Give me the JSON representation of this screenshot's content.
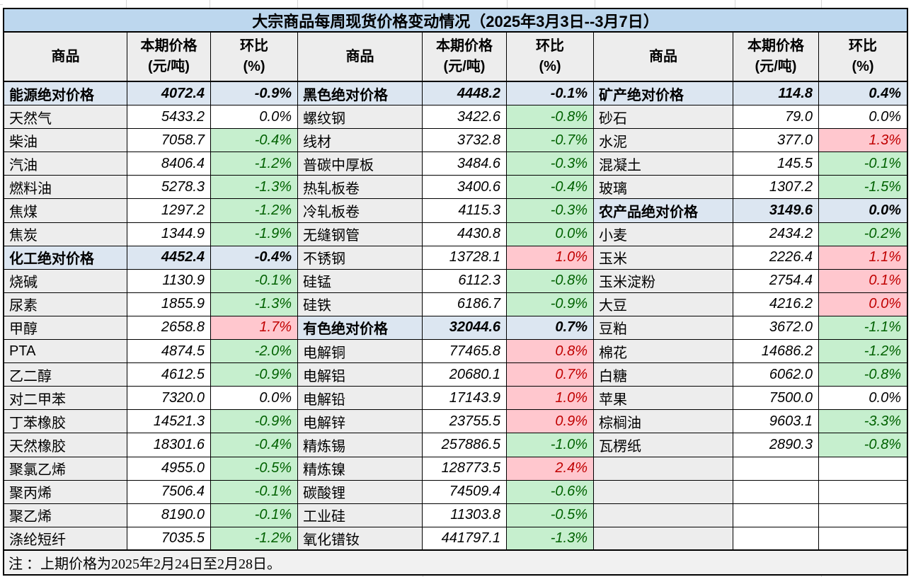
{
  "title": "大宗商品每周现货价格变动情况（2025年3月3日--3月7日）",
  "note": "注 ：上期价格为2025年2月24日至2月28日。",
  "column_headers": {
    "commodity": "商品",
    "price": "本期价格\n(元/吨)",
    "change": "环比\n(%)"
  },
  "colors": {
    "title_bg": "#BDD7EE",
    "category_bg": "#DCE6F1",
    "label_bg": "#EDEDED",
    "up_bg": "#FFC7CE",
    "up_text": "#C00000",
    "down_bg": "#C6EFCE",
    "down_text": "#006100"
  },
  "groups": [
    {
      "rows": [
        {
          "label": "能源绝对价格",
          "price": "4072.4",
          "change": "-0.9%",
          "type": "category",
          "style": "plain"
        },
        {
          "label": "天然气",
          "price": "5433.2",
          "change": "0.0%",
          "type": "item",
          "style": "plain"
        },
        {
          "label": "柴油",
          "price": "7058.7",
          "change": "-0.4%",
          "type": "item",
          "style": "green"
        },
        {
          "label": "汽油",
          "price": "8406.4",
          "change": "-1.2%",
          "type": "item",
          "style": "green"
        },
        {
          "label": "燃料油",
          "price": "5278.3",
          "change": "-1.3%",
          "type": "item",
          "style": "green"
        },
        {
          "label": "焦煤",
          "price": "1297.2",
          "change": "-1.2%",
          "type": "item",
          "style": "green"
        },
        {
          "label": "焦炭",
          "price": "1344.9",
          "change": "-1.9%",
          "type": "item",
          "style": "green"
        },
        {
          "label": "化工绝对价格",
          "price": "4452.4",
          "change": "-0.4%",
          "type": "category",
          "style": "plain"
        },
        {
          "label": "烧碱",
          "price": "1130.9",
          "change": "-0.1%",
          "type": "item",
          "style": "green"
        },
        {
          "label": "尿素",
          "price": "1855.9",
          "change": "-1.3%",
          "type": "item",
          "style": "green"
        },
        {
          "label": "甲醇",
          "price": "2658.8",
          "change": "1.7%",
          "type": "item",
          "style": "red"
        },
        {
          "label": "PTA",
          "price": "4874.5",
          "change": "-2.0%",
          "type": "item",
          "style": "green"
        },
        {
          "label": "乙二醇",
          "price": "4612.5",
          "change": "-0.9%",
          "type": "item",
          "style": "green"
        },
        {
          "label": "对二甲苯",
          "price": "7320.0",
          "change": "0.0%",
          "type": "item",
          "style": "plain"
        },
        {
          "label": "丁苯橡胶",
          "price": "14521.3",
          "change": "-0.9%",
          "type": "item",
          "style": "green"
        },
        {
          "label": "天然橡胶",
          "price": "18301.6",
          "change": "-0.4%",
          "type": "item",
          "style": "green"
        },
        {
          "label": "聚氯乙烯",
          "price": "4955.0",
          "change": "-0.5%",
          "type": "item",
          "style": "green"
        },
        {
          "label": "聚丙烯",
          "price": "7506.4",
          "change": "-0.1%",
          "type": "item",
          "style": "green"
        },
        {
          "label": "聚乙烯",
          "price": "8190.0",
          "change": "-0.1%",
          "type": "item",
          "style": "green"
        },
        {
          "label": "涤纶短纤",
          "price": "7035.5",
          "change": "-1.2%",
          "type": "item",
          "style": "green"
        }
      ]
    },
    {
      "rows": [
        {
          "label": "黑色绝对价格",
          "price": "4448.2",
          "change": "-0.1%",
          "type": "category",
          "style": "plain"
        },
        {
          "label": "螺纹钢",
          "price": "3422.6",
          "change": "-0.8%",
          "type": "item",
          "style": "green"
        },
        {
          "label": "线材",
          "price": "3732.8",
          "change": "-0.7%",
          "type": "item",
          "style": "green"
        },
        {
          "label": "普碳中厚板",
          "price": "3484.6",
          "change": "-0.3%",
          "type": "item",
          "style": "green"
        },
        {
          "label": "热轧板卷",
          "price": "3400.6",
          "change": "-0.4%",
          "type": "item",
          "style": "green"
        },
        {
          "label": "冷轧板卷",
          "price": "4115.3",
          "change": "-0.3%",
          "type": "item",
          "style": "green"
        },
        {
          "label": "无缝钢管",
          "price": "4430.8",
          "change": "0.0%",
          "type": "item",
          "style": "green"
        },
        {
          "label": "不锈钢",
          "price": "13728.1",
          "change": "1.0%",
          "type": "item",
          "style": "red"
        },
        {
          "label": "硅锰",
          "price": "6112.3",
          "change": "-0.8%",
          "type": "item",
          "style": "green"
        },
        {
          "label": "硅铁",
          "price": "6186.7",
          "change": "-0.9%",
          "type": "item",
          "style": "green"
        },
        {
          "label": "有色绝对价格",
          "price": "32044.6",
          "change": "0.7%",
          "type": "category",
          "style": "plain"
        },
        {
          "label": "电解铜",
          "price": "77465.8",
          "change": "0.8%",
          "type": "item",
          "style": "red"
        },
        {
          "label": "电解铝",
          "price": "20680.1",
          "change": "0.7%",
          "type": "item",
          "style": "red"
        },
        {
          "label": "电解铅",
          "price": "17143.9",
          "change": "1.0%",
          "type": "item",
          "style": "red"
        },
        {
          "label": "电解锌",
          "price": "23755.5",
          "change": "0.9%",
          "type": "item",
          "style": "red"
        },
        {
          "label": "精炼锡",
          "price": "257886.5",
          "change": "-1.0%",
          "type": "item",
          "style": "green"
        },
        {
          "label": "精炼镍",
          "price": "128773.5",
          "change": "2.4%",
          "type": "item",
          "style": "red"
        },
        {
          "label": "碳酸锂",
          "price": "74509.4",
          "change": "-0.6%",
          "type": "item",
          "style": "green"
        },
        {
          "label": "工业硅",
          "price": "11303.8",
          "change": "-0.5%",
          "type": "item",
          "style": "green"
        },
        {
          "label": "氧化镨钕",
          "price": "441797.1",
          "change": "-1.3%",
          "type": "item",
          "style": "green"
        }
      ]
    },
    {
      "rows": [
        {
          "label": "矿产绝对价格",
          "price": "114.8",
          "change": "0.4%",
          "type": "category",
          "style": "plain"
        },
        {
          "label": "砂石",
          "price": "79.0",
          "change": "0.0%",
          "type": "item",
          "style": "plain"
        },
        {
          "label": "水泥",
          "price": "377.0",
          "change": "1.3%",
          "type": "item",
          "style": "red"
        },
        {
          "label": "混凝土",
          "price": "145.5",
          "change": "-0.1%",
          "type": "item",
          "style": "green"
        },
        {
          "label": "玻璃",
          "price": "1307.2",
          "change": "-1.5%",
          "type": "item",
          "style": "green"
        },
        {
          "label": "农产品绝对价格",
          "price": "3149.6",
          "change": "0.0%",
          "type": "category",
          "style": "plain"
        },
        {
          "label": "小麦",
          "price": "2434.2",
          "change": "-0.2%",
          "type": "item",
          "style": "green"
        },
        {
          "label": "玉米",
          "price": "2226.4",
          "change": "1.1%",
          "type": "item",
          "style": "red"
        },
        {
          "label": "玉米淀粉",
          "price": "2754.4",
          "change": "0.1%",
          "type": "item",
          "style": "red"
        },
        {
          "label": "大豆",
          "price": "4216.2",
          "change": "0.0%",
          "type": "item",
          "style": "red"
        },
        {
          "label": "豆粕",
          "price": "3672.0",
          "change": "-1.1%",
          "type": "item",
          "style": "green"
        },
        {
          "label": "棉花",
          "price": "14686.2",
          "change": "-1.2%",
          "type": "item",
          "style": "green"
        },
        {
          "label": "白糖",
          "price": "6062.0",
          "change": "-0.8%",
          "type": "item",
          "style": "green"
        },
        {
          "label": "苹果",
          "price": "7500.0",
          "change": "0.0%",
          "type": "item",
          "style": "plain"
        },
        {
          "label": "棕榈油",
          "price": "9603.1",
          "change": "-3.3%",
          "type": "item",
          "style": "green"
        },
        {
          "label": "瓦楞纸",
          "price": "2890.3",
          "change": "-0.8%",
          "type": "item",
          "style": "green"
        },
        {
          "label": "",
          "price": "",
          "change": "",
          "type": "empty",
          "style": "plain"
        },
        {
          "label": "",
          "price": "",
          "change": "",
          "type": "empty",
          "style": "plain"
        },
        {
          "label": "",
          "price": "",
          "change": "",
          "type": "empty",
          "style": "plain"
        },
        {
          "label": "",
          "price": "",
          "change": "",
          "type": "empty",
          "style": "plain"
        }
      ]
    }
  ]
}
